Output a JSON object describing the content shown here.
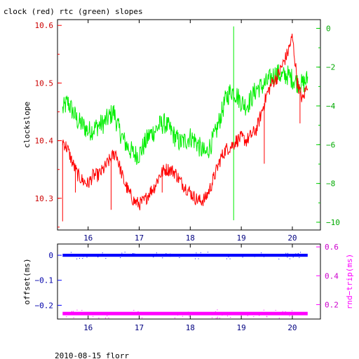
{
  "page": {
    "title": "clock (red) rtc (green) slopes",
    "footer": "2010-08-15 florr"
  },
  "chart_data": [
    {
      "id": "top",
      "type": "line",
      "ylabel": "clockslope",
      "xlim": [
        15.4,
        20.55
      ],
      "ylim_left": [
        10.245,
        10.61
      ],
      "ylim_right": [
        -10.4,
        0.45
      ],
      "x_ticks": [
        16,
        17,
        18,
        19,
        20
      ],
      "x_tick_labels": [
        "16",
        "17",
        "18",
        "19",
        "20"
      ],
      "y_left_ticks": [
        10.3,
        10.4,
        10.5,
        10.6
      ],
      "y_left_tick_labels": [
        "10.3",
        "10.4",
        "10.5",
        "10.6"
      ],
      "y_right_ticks": [
        0,
        -2,
        -4,
        -6,
        -8,
        -10
      ],
      "y_right_tick_labels": [
        "0",
        "−2",
        "−4",
        "−6",
        "−8",
        "−10"
      ],
      "series": [
        {
          "description_color": "red",
          "color": "#ff0000",
          "axis": "left",
          "x": [
            15.5,
            15.6,
            15.7,
            15.8,
            15.9,
            16.0,
            16.1,
            16.2,
            16.3,
            16.45,
            16.55,
            16.6,
            16.7,
            16.8,
            16.9,
            17.0,
            17.1,
            17.2,
            17.3,
            17.4,
            17.5,
            17.6,
            17.7,
            17.8,
            17.9,
            18.0,
            18.1,
            18.2,
            18.3,
            18.4,
            18.5,
            18.6,
            18.7,
            18.8,
            18.9,
            19.0,
            19.1,
            19.2,
            19.3,
            19.4,
            19.5,
            19.6,
            19.7,
            19.8,
            19.9,
            20.0,
            20.1,
            20.2,
            20.3
          ],
          "y": [
            10.4,
            10.385,
            10.36,
            10.34,
            10.33,
            10.325,
            10.34,
            10.34,
            10.35,
            10.37,
            10.38,
            10.36,
            10.33,
            10.31,
            10.295,
            10.29,
            10.295,
            10.31,
            10.32,
            10.34,
            10.35,
            10.35,
            10.345,
            10.33,
            10.32,
            10.31,
            10.3,
            10.295,
            10.3,
            10.32,
            10.345,
            10.37,
            10.385,
            10.39,
            10.4,
            10.405,
            10.4,
            10.41,
            10.42,
            10.45,
            10.48,
            10.5,
            10.51,
            10.53,
            10.55,
            10.58,
            10.5,
            10.47,
            10.5
          ],
          "spikes": [
            {
              "x": 15.5,
              "y": 10.26
            },
            {
              "x": 15.75,
              "y": 10.31
            },
            {
              "x": 16.45,
              "y": 10.28
            },
            {
              "x": 17.45,
              "y": 10.31
            },
            {
              "x": 19.45,
              "y": 10.36
            },
            {
              "x": 20.15,
              "y": 10.43
            }
          ]
        },
        {
          "description_color": "green",
          "color": "#00ee00",
          "axis": "right",
          "x": [
            15.5,
            15.6,
            15.7,
            15.8,
            15.9,
            16.0,
            16.1,
            16.2,
            16.3,
            16.4,
            16.5,
            16.6,
            16.7,
            16.8,
            16.9,
            17.0,
            17.1,
            17.2,
            17.3,
            17.4,
            17.5,
            17.6,
            17.7,
            17.8,
            17.9,
            18.0,
            18.1,
            18.2,
            18.3,
            18.4,
            18.5,
            18.6,
            18.7,
            18.8,
            18.9,
            19.0,
            19.1,
            19.2,
            19.3,
            19.4,
            19.5,
            19.6,
            19.7,
            19.8,
            19.9,
            20.0,
            20.1,
            20.2,
            20.3
          ],
          "y": [
            -4.2,
            -3.8,
            -4.3,
            -4.8,
            -5.0,
            -5.3,
            -5.2,
            -5.0,
            -4.9,
            -4.6,
            -4.3,
            -5.2,
            -5.8,
            -6.2,
            -6.5,
            -6.5,
            -6.0,
            -5.5,
            -5.3,
            -5.0,
            -4.9,
            -5.2,
            -5.6,
            -5.9,
            -5.8,
            -5.6,
            -5.8,
            -6.2,
            -6.5,
            -6.0,
            -5.4,
            -4.5,
            -3.6,
            -3.2,
            -3.4,
            -3.8,
            -4.0,
            -3.6,
            -3.1,
            -3.0,
            -2.8,
            -2.5,
            -2.3,
            -2.5,
            -2.4,
            -2.6,
            -2.8,
            -2.9,
            -2.6
          ],
          "spikes": [
            {
              "x": 18.85,
              "y": 0.1
            },
            {
              "x": 18.85,
              "y": -9.9
            }
          ]
        }
      ]
    },
    {
      "id": "bottom",
      "type": "scatter",
      "ylabel_left": "offset(ms)",
      "ylabel_right": "rnd−trip(ms)",
      "xlim": [
        15.4,
        20.55
      ],
      "ylim_left": [
        -0.255,
        0.045
      ],
      "ylim_right": [
        0.1,
        0.62
      ],
      "x_ticks": [
        16,
        17,
        18,
        19,
        20
      ],
      "x_tick_labels": [
        "16",
        "17",
        "18",
        "19",
        "20"
      ],
      "y_left_ticks": [
        0,
        -0.1,
        -0.2
      ],
      "y_left_tick_labels": [
        "0",
        "−0.1",
        "−0.2"
      ],
      "y_right_ticks": [
        0.2,
        0.4,
        0.6
      ],
      "y_right_tick_labels": [
        "0.2",
        "0.4",
        "0.6"
      ],
      "series": [
        {
          "description_color": "blue",
          "color": "#0000ff",
          "axis": "left",
          "x_range": [
            15.5,
            20.3
          ],
          "y_center": 0.0,
          "y_band": 0.006
        },
        {
          "description_color": "magenta",
          "color": "#ff00ff",
          "axis": "right",
          "x_range": [
            15.5,
            20.3
          ],
          "y_center": 0.138,
          "y_band": 0.012
        }
      ]
    }
  ]
}
